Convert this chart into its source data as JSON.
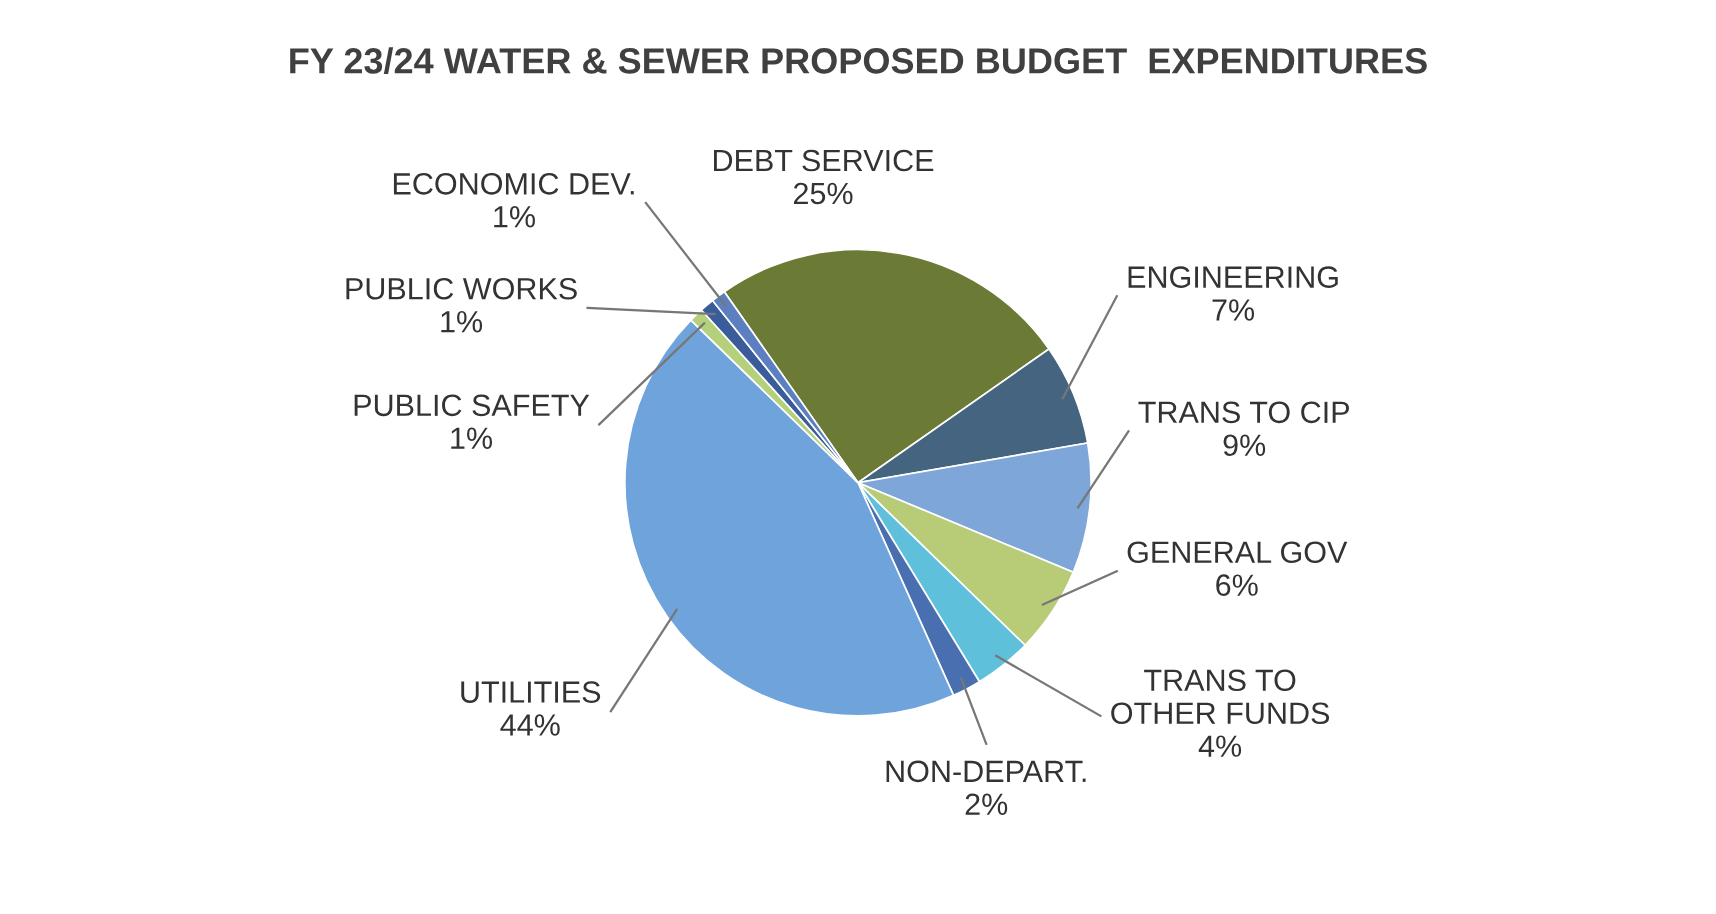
{
  "chart_data": {
    "type": "pie",
    "title": "FY 23/24 WATER & SEWER PROPOSED BUDGET  EXPENDITURES",
    "categories": [
      "DEBT SERVICE",
      "ENGINEERING",
      "TRANS TO CIP",
      "GENERAL GOV",
      "TRANS TO OTHER FUNDS",
      "NON-DEPART.",
      "UTILITIES",
      "PUBLIC SAFETY",
      "PUBLIC WORKS",
      "ECONOMIC DEV."
    ],
    "values": [
      25,
      7,
      9,
      6,
      4,
      2,
      44,
      1,
      1,
      1
    ],
    "colors": [
      "#6b7a35",
      "#44647f",
      "#7fa6d9",
      "#b8cc78",
      "#5fc0dc",
      "#4a6fb0",
      "#6fa3dc",
      "#b4d07a",
      "#3a5c9a",
      "#5b7fc0"
    ],
    "value_labels": [
      "25%",
      "7%",
      "9%",
      "6%",
      "4%",
      "2%",
      "44%",
      "1%",
      "1%",
      "1%"
    ]
  }
}
